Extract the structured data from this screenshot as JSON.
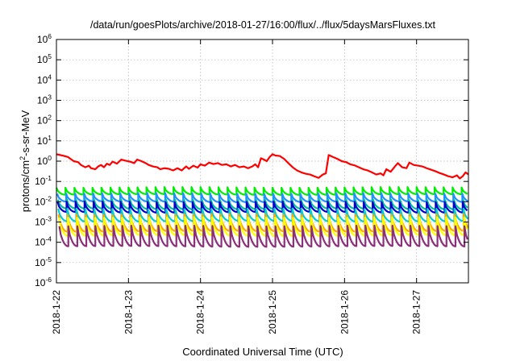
{
  "chart_data": {
    "type": "line",
    "title": "/data/run/goesPlots/archive/2018-01-27/16:00/flux/../flux/5daysMarsFluxes.txt",
    "xlabel": "Coordinated Universal Time (UTC)",
    "ylabel": "protons/cm²-s-sr-MeV",
    "ylabel_parts": {
      "base": "protons/cm",
      "sup": "2",
      "rest": "-s-sr-MeV"
    },
    "y_scale": "log",
    "ylim": [
      1e-06,
      1000000.0
    ],
    "xlim_days": [
      0,
      5.72
    ],
    "x_start_date": "2018-01-22",
    "x_ticks": [
      {
        "day": 0,
        "label": "2018-1-22"
      },
      {
        "day": 1,
        "label": "2018-1-23"
      },
      {
        "day": 2,
        "label": "2018-1-24"
      },
      {
        "day": 3,
        "label": "2018-1-25"
      },
      {
        "day": 4,
        "label": "2018-1-26"
      },
      {
        "day": 5,
        "label": "2018-1-27"
      }
    ],
    "y_ticks": [
      {
        "exp": -6,
        "label_base": "10",
        "label_exp": "-6"
      },
      {
        "exp": -5,
        "label_base": "10",
        "label_exp": "-5"
      },
      {
        "exp": -4,
        "label_base": "10",
        "label_exp": "-4"
      },
      {
        "exp": -3,
        "label_base": "10",
        "label_exp": "-3"
      },
      {
        "exp": -2,
        "label_base": "10",
        "label_exp": "-2"
      },
      {
        "exp": -1,
        "label_base": "10",
        "label_exp": "-1"
      },
      {
        "exp": 0,
        "label_base": "10",
        "label_exp": "0"
      },
      {
        "exp": 1,
        "label_base": "10",
        "label_exp": "1"
      },
      {
        "exp": 2,
        "label_base": "10",
        "label_exp": "2"
      },
      {
        "exp": 3,
        "label_base": "10",
        "label_exp": "3"
      },
      {
        "exp": 4,
        "label_base": "10",
        "label_exp": "4"
      },
      {
        "exp": 5,
        "label_base": "10",
        "label_exp": "5"
      },
      {
        "exp": 6,
        "label_base": "10",
        "label_exp": "6"
      }
    ],
    "grid": true,
    "legend": "none",
    "series": [
      {
        "color": "#ff0000",
        "points": [
          [
            0.0,
            2.2
          ],
          [
            0.08,
            1.9
          ],
          [
            0.16,
            1.6
          ],
          [
            0.24,
            1.0
          ],
          [
            0.3,
            0.9
          ],
          [
            0.34,
            0.65
          ],
          [
            0.4,
            0.5
          ],
          [
            0.45,
            0.6
          ],
          [
            0.48,
            0.45
          ],
          [
            0.54,
            0.4
          ],
          [
            0.58,
            0.55
          ],
          [
            0.62,
            0.65
          ],
          [
            0.66,
            0.5
          ],
          [
            0.7,
            0.75
          ],
          [
            0.74,
            0.65
          ],
          [
            0.78,
            0.95
          ],
          [
            0.84,
            0.75
          ],
          [
            0.9,
            1.2
          ],
          [
            0.96,
            1.05
          ],
          [
            1.02,
            0.95
          ],
          [
            1.08,
            0.8
          ],
          [
            1.12,
            1.2
          ],
          [
            1.18,
            1.0
          ],
          [
            1.24,
            0.8
          ],
          [
            1.28,
            0.65
          ],
          [
            1.34,
            0.55
          ],
          [
            1.4,
            0.5
          ],
          [
            1.44,
            0.4
          ],
          [
            1.5,
            0.45
          ],
          [
            1.56,
            0.42
          ],
          [
            1.62,
            0.35
          ],
          [
            1.68,
            0.45
          ],
          [
            1.74,
            0.35
          ],
          [
            1.8,
            0.55
          ],
          [
            1.84,
            0.42
          ],
          [
            1.9,
            0.6
          ],
          [
            1.96,
            0.48
          ],
          [
            2.0,
            0.7
          ],
          [
            2.06,
            0.6
          ],
          [
            2.12,
            0.85
          ],
          [
            2.18,
            0.72
          ],
          [
            2.24,
            0.8
          ],
          [
            2.3,
            0.65
          ],
          [
            2.36,
            0.7
          ],
          [
            2.42,
            0.55
          ],
          [
            2.48,
            0.65
          ],
          [
            2.54,
            0.5
          ],
          [
            2.6,
            0.55
          ],
          [
            2.66,
            0.45
          ],
          [
            2.72,
            0.55
          ],
          [
            2.76,
            0.7
          ],
          [
            2.8,
            0.5
          ],
          [
            2.84,
            1.4
          ],
          [
            2.88,
            1.2
          ],
          [
            2.92,
            1.0
          ],
          [
            2.96,
            1.6
          ],
          [
            3.0,
            2.2
          ],
          [
            3.04,
            1.9
          ],
          [
            3.1,
            1.8
          ],
          [
            3.16,
            1.3
          ],
          [
            3.22,
            0.8
          ],
          [
            3.28,
            0.5
          ],
          [
            3.34,
            0.35
          ],
          [
            3.4,
            0.28
          ],
          [
            3.46,
            0.24
          ],
          [
            3.52,
            0.22
          ],
          [
            3.58,
            0.18
          ],
          [
            3.64,
            0.15
          ],
          [
            3.7,
            0.22
          ],
          [
            3.74,
            0.25
          ],
          [
            3.78,
            2.0
          ],
          [
            3.84,
            1.6
          ],
          [
            3.9,
            1.3
          ],
          [
            3.96,
            1.0
          ],
          [
            4.02,
            0.9
          ],
          [
            4.08,
            0.7
          ],
          [
            4.14,
            0.62
          ],
          [
            4.2,
            0.5
          ],
          [
            4.26,
            0.4
          ],
          [
            4.32,
            0.35
          ],
          [
            4.38,
            0.28
          ],
          [
            4.44,
            0.22
          ],
          [
            4.5,
            0.25
          ],
          [
            4.54,
            0.2
          ],
          [
            4.58,
            0.4
          ],
          [
            4.64,
            0.3
          ],
          [
            4.7,
            0.55
          ],
          [
            4.74,
            0.8
          ],
          [
            4.8,
            0.5
          ],
          [
            4.86,
            0.45
          ],
          [
            4.9,
            0.85
          ],
          [
            4.96,
            0.65
          ],
          [
            5.02,
            0.6
          ],
          [
            5.08,
            0.55
          ],
          [
            5.14,
            0.45
          ],
          [
            5.2,
            0.38
          ],
          [
            5.26,
            0.32
          ],
          [
            5.32,
            0.26
          ],
          [
            5.38,
            0.22
          ],
          [
            5.44,
            0.18
          ],
          [
            5.5,
            0.16
          ],
          [
            5.56,
            0.2
          ],
          [
            5.6,
            0.14
          ],
          [
            5.64,
            0.18
          ],
          [
            5.68,
            0.28
          ],
          [
            5.72,
            0.22
          ]
        ]
      },
      {
        "color": "#00ee00",
        "base": 0.034,
        "amplitude": 1.5,
        "decline": 0.22,
        "period_days": 0.125,
        "phase": 0.0
      },
      {
        "color": "#1e90ff",
        "base": 0.016,
        "amplitude": 1.6,
        "decline": 0.22,
        "period_days": 0.125,
        "phase": 0.01
      },
      {
        "color": "#00bfa0",
        "base": 0.0075,
        "amplitude": 1.7,
        "decline": 0.22,
        "period_days": 0.125,
        "phase": 0.02
      },
      {
        "color": "#0000cd",
        "base": 0.0055,
        "amplitude": 1.8,
        "decline": 0.22,
        "period_days": 0.125,
        "phase": 0.015
      },
      {
        "color": "#00ced1",
        "base": 0.0022,
        "amplitude": 2.0,
        "decline": 0.22,
        "period_days": 0.125,
        "phase": 0.025
      },
      {
        "color": "#ffa500",
        "base": 0.0009,
        "amplitude": 2.6,
        "decline": 0.18,
        "period_days": 0.125,
        "phase": 0.03
      },
      {
        "color": "#ffff00",
        "base": 0.0006,
        "amplitude": 2.8,
        "decline": 0.18,
        "period_days": 0.125,
        "phase": 0.035
      },
      {
        "color": "#8b2f7a",
        "base": 0.0002,
        "amplitude": 3.2,
        "decline": 0.15,
        "period_days": 0.125,
        "phase": 0.04
      }
    ]
  }
}
